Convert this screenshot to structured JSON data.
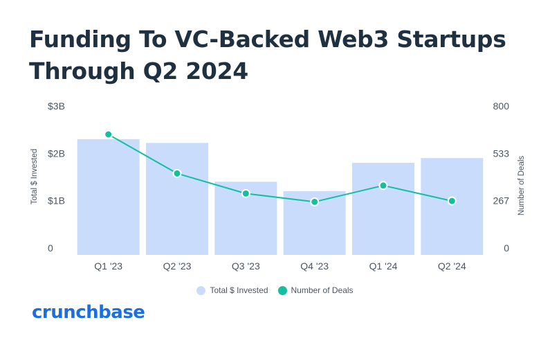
{
  "header": {
    "title": "Funding To VC-Backed Web3 Startups Through Q2 2024"
  },
  "brand": {
    "logo_text": "crunchbase",
    "logo_color": "#1b6fe0"
  },
  "colors": {
    "bar": "#cadcfc",
    "line": "#14bfa0",
    "title": "#1f3141"
  },
  "chart_data": {
    "type": "bar",
    "categories": [
      "Q1 '23",
      "Q2 '23",
      "Q3 '23",
      "Q4 '23",
      "Q1 '24",
      "Q2 '24"
    ],
    "series": [
      {
        "name": "Total $ Invested",
        "type": "bar",
        "axis": "left",
        "values": [
          2.3,
          2.22,
          1.4,
          1.2,
          1.8,
          1.9
        ]
      },
      {
        "name": "Number of Deals",
        "type": "line",
        "axis": "right",
        "values": [
          640,
          420,
          307,
          260,
          352,
          265
        ]
      }
    ],
    "ylabel": "Total $ Invested",
    "ylabel_right": "Number of Deals",
    "ylim": [
      0,
      3
    ],
    "ylim_right": [
      0,
      800
    ],
    "yticks": [
      0,
      1,
      2,
      3
    ],
    "yticklabels": [
      "0",
      "$1B",
      "$2B",
      "$3B"
    ],
    "yticks_right": [
      0,
      267,
      533,
      800
    ],
    "yticklabels_right": [
      "0",
      "267",
      "533",
      "800"
    ],
    "legend_position": "bottom",
    "grid": false
  }
}
